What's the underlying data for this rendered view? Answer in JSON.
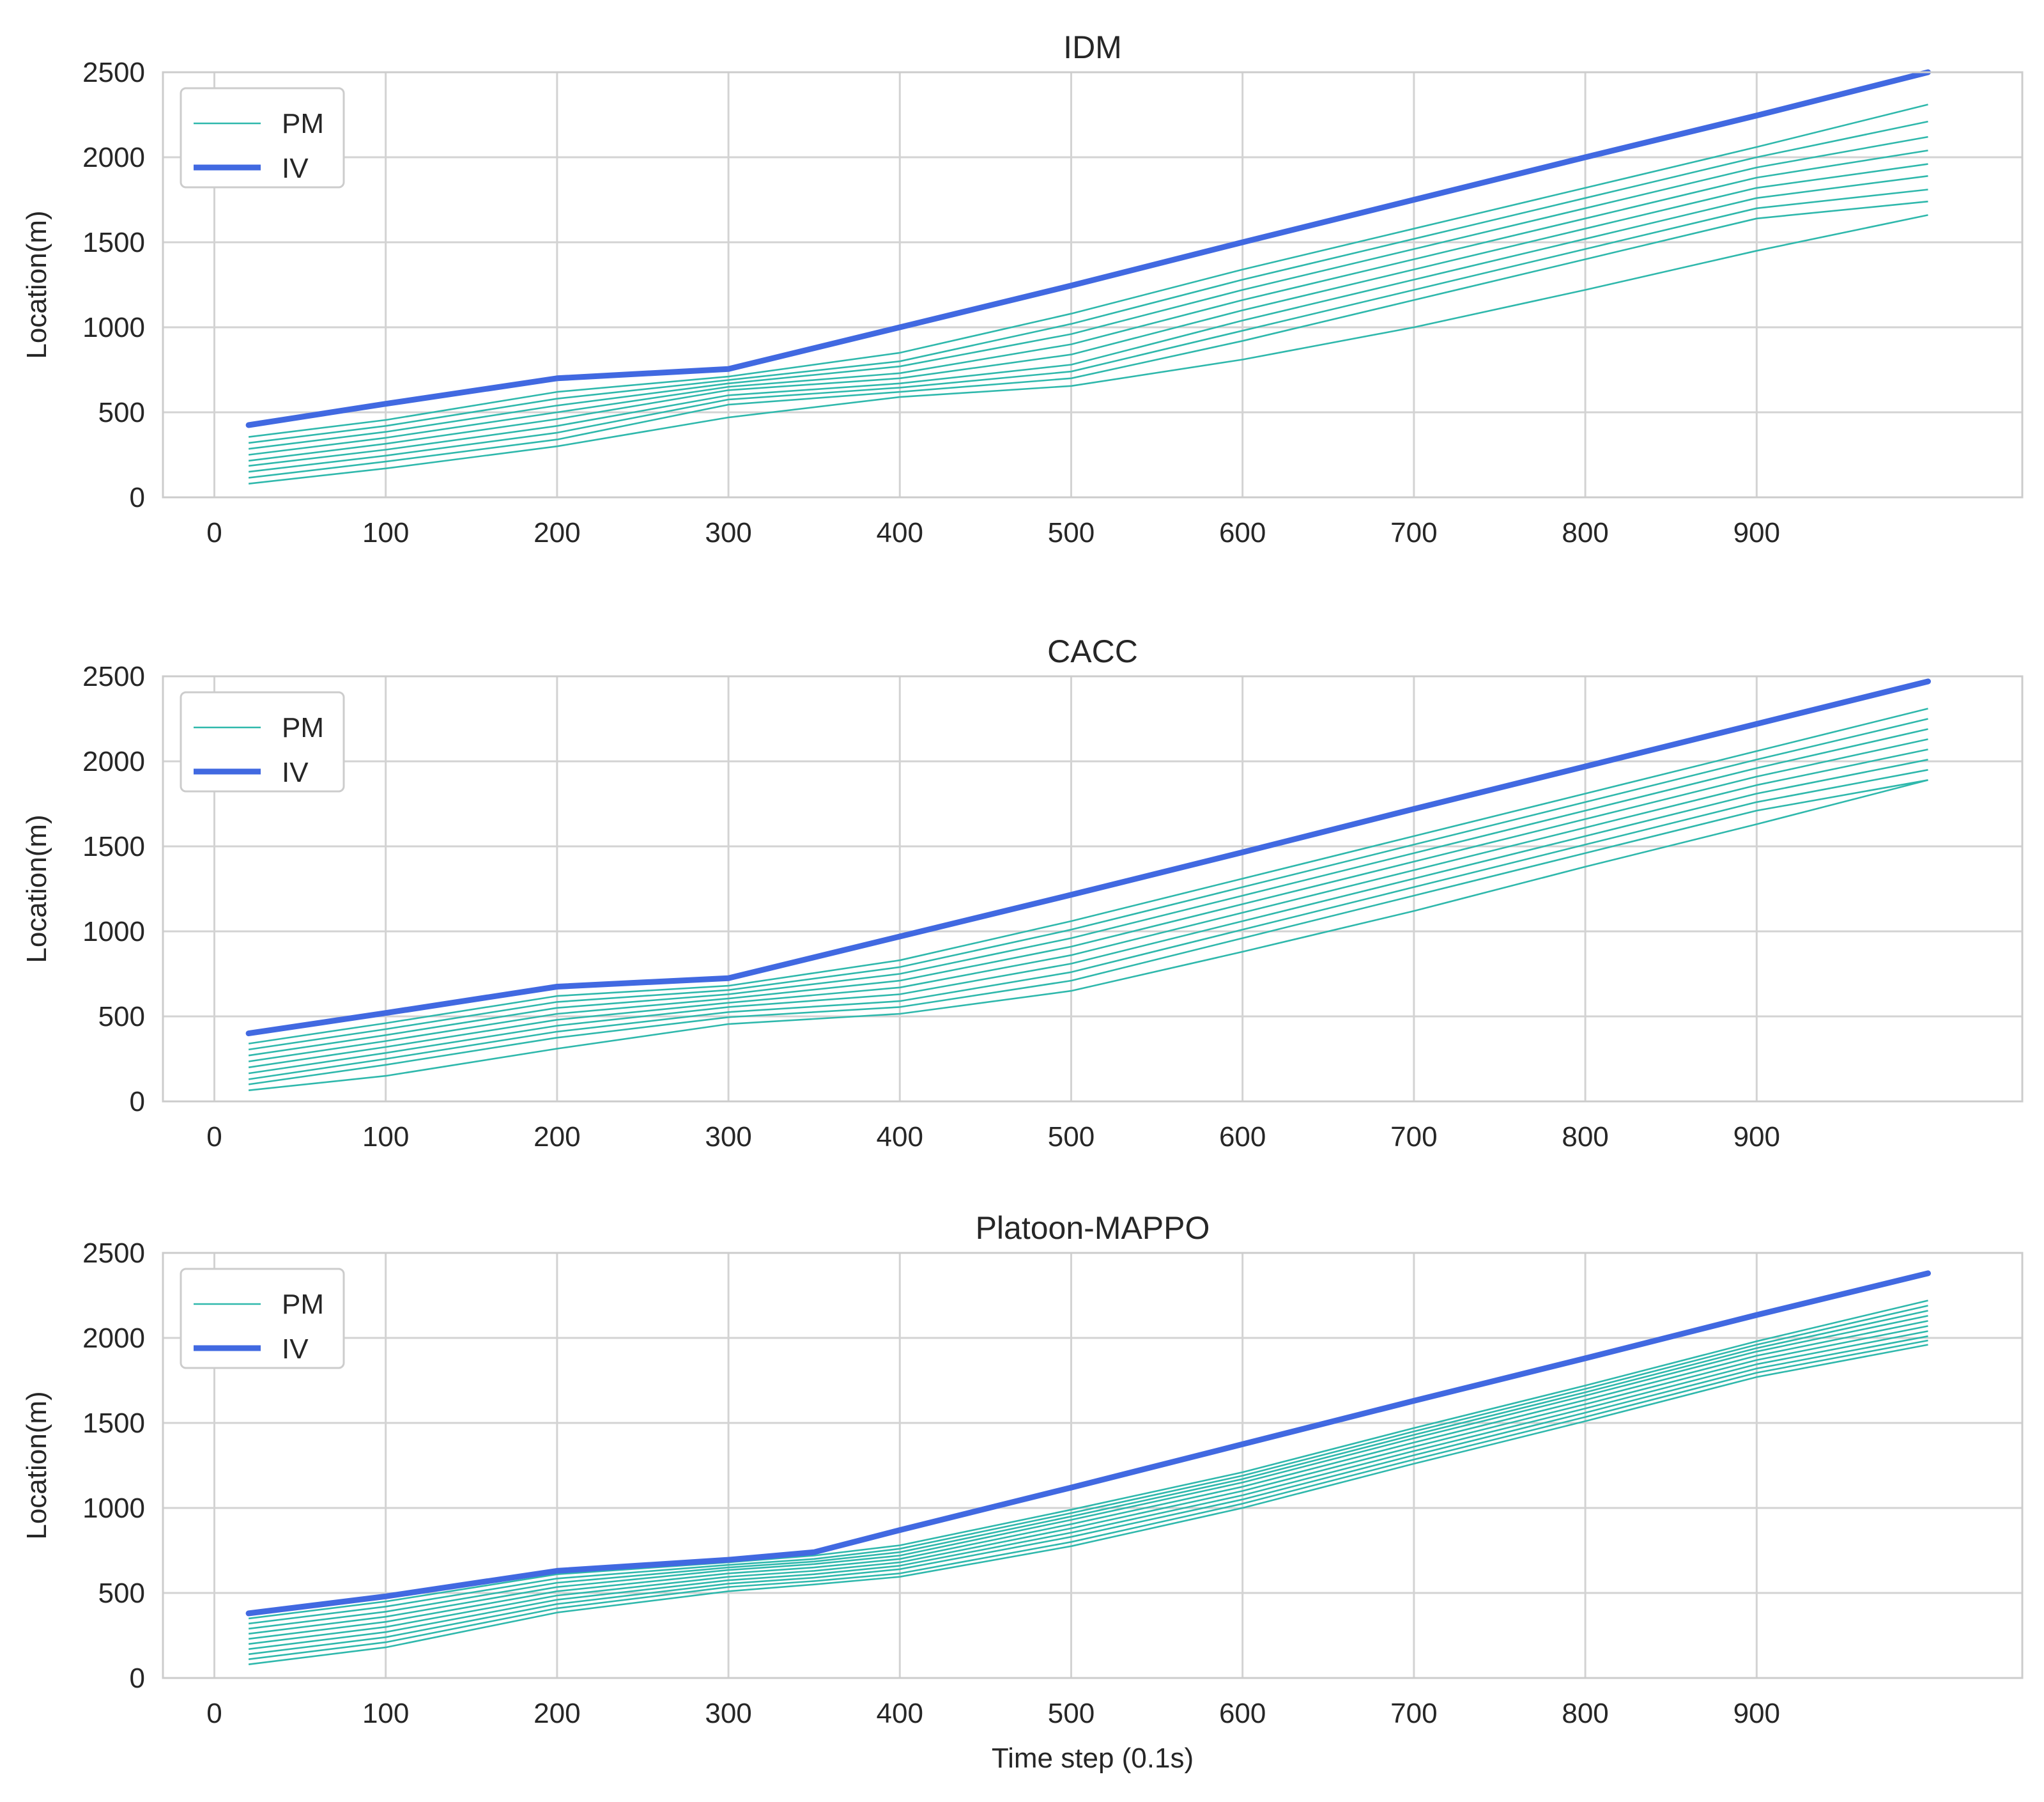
{
  "chart_data": [
    {
      "type": "line",
      "title": "IDM",
      "xlabel": "",
      "ylabel": "Location(m)",
      "xlim": [
        -30,
        1055
      ],
      "ylim": [
        0,
        2500
      ],
      "xticks": [
        0,
        100,
        200,
        300,
        400,
        500,
        600,
        700,
        800,
        900
      ],
      "yticks": [
        0,
        500,
        1000,
        1500,
        2000,
        2500
      ],
      "grid": true,
      "legend": {
        "position": "top-left",
        "entries": [
          "PM",
          "IV"
        ]
      },
      "iv": {
        "name": "IV",
        "x": [
          20,
          100,
          200,
          300,
          400,
          500,
          600,
          700,
          800,
          900,
          1000
        ],
        "y": [
          425,
          550,
          700,
          755,
          1000,
          1245,
          1500,
          1750,
          2000,
          2245,
          2500
        ]
      },
      "pm": {
        "name": "PM",
        "x": [
          20,
          100,
          200,
          300,
          400,
          500,
          600,
          700,
          800,
          900,
          1000
        ],
        "series": [
          [
            355,
            455,
            620,
            710,
            850,
            1080,
            1340,
            1580,
            1820,
            2060,
            2310
          ],
          [
            320,
            420,
            580,
            690,
            800,
            1020,
            1280,
            1520,
            1760,
            2000,
            2210
          ],
          [
            285,
            385,
            540,
            670,
            770,
            960,
            1220,
            1460,
            1700,
            1940,
            2120
          ],
          [
            250,
            350,
            500,
            650,
            730,
            900,
            1160,
            1400,
            1640,
            1880,
            2040
          ],
          [
            215,
            315,
            460,
            630,
            700,
            840,
            1100,
            1340,
            1580,
            1820,
            1960
          ],
          [
            185,
            280,
            420,
            600,
            670,
            780,
            1040,
            1280,
            1520,
            1760,
            1890
          ],
          [
            150,
            245,
            380,
            575,
            645,
            740,
            980,
            1220,
            1460,
            1700,
            1810
          ],
          [
            115,
            210,
            340,
            545,
            620,
            700,
            920,
            1160,
            1400,
            1640,
            1740
          ],
          [
            80,
            170,
            300,
            470,
            590,
            655,
            810,
            1000,
            1220,
            1450,
            1660
          ]
        ]
      }
    },
    {
      "type": "line",
      "title": "CACC",
      "xlabel": "",
      "ylabel": "Location(m)",
      "xlim": [
        -30,
        1055
      ],
      "ylim": [
        0,
        2500
      ],
      "xticks": [
        0,
        100,
        200,
        300,
        400,
        500,
        600,
        700,
        800,
        900
      ],
      "yticks": [
        0,
        500,
        1000,
        1500,
        2000,
        2500
      ],
      "grid": true,
      "legend": {
        "position": "top-left",
        "entries": [
          "PM",
          "IV"
        ]
      },
      "iv": {
        "name": "IV",
        "x": [
          20,
          100,
          200,
          300,
          400,
          500,
          600,
          700,
          800,
          900,
          1000
        ],
        "y": [
          400,
          520,
          675,
          725,
          970,
          1215,
          1465,
          1720,
          1970,
          2220,
          2470
        ]
      },
      "pm": {
        "name": "PM",
        "x": [
          20,
          100,
          200,
          300,
          400,
          500,
          600,
          700,
          800,
          900,
          1000
        ],
        "series": [
          [
            340,
            460,
            620,
            680,
            830,
            1060,
            1310,
            1560,
            1810,
            2060,
            2310
          ],
          [
            305,
            425,
            585,
            655,
            790,
            1010,
            1260,
            1510,
            1760,
            2010,
            2250
          ],
          [
            270,
            390,
            550,
            630,
            750,
            960,
            1210,
            1460,
            1710,
            1960,
            2190
          ],
          [
            235,
            355,
            515,
            605,
            710,
            910,
            1160,
            1410,
            1660,
            1910,
            2130
          ],
          [
            200,
            320,
            480,
            580,
            670,
            860,
            1110,
            1360,
            1610,
            1860,
            2070
          ],
          [
            165,
            285,
            445,
            555,
            630,
            810,
            1060,
            1310,
            1560,
            1810,
            2010
          ],
          [
            130,
            250,
            410,
            525,
            590,
            760,
            1010,
            1260,
            1510,
            1760,
            1950
          ],
          [
            100,
            215,
            375,
            495,
            555,
            710,
            960,
            1210,
            1460,
            1710,
            1890
          ],
          [
            65,
            150,
            310,
            455,
            515,
            650,
            880,
            1120,
            1380,
            1630,
            1890
          ]
        ]
      }
    },
    {
      "type": "line",
      "title": "Platoon-MAPPO",
      "xlabel": "Time step (0.1s)",
      "ylabel": "Location(m)",
      "xlim": [
        -30,
        1055
      ],
      "ylim": [
        0,
        2500
      ],
      "xticks": [
        0,
        100,
        200,
        300,
        400,
        500,
        600,
        700,
        800,
        900
      ],
      "yticks": [
        0,
        500,
        1000,
        1500,
        2000,
        2500
      ],
      "grid": true,
      "legend": {
        "position": "top-left",
        "entries": [
          "PM",
          "IV"
        ]
      },
      "iv": {
        "name": "IV",
        "x": [
          20,
          100,
          200,
          300,
          350,
          400,
          500,
          600,
          700,
          800,
          900,
          1000
        ],
        "y": [
          380,
          480,
          630,
          695,
          740,
          870,
          1120,
          1375,
          1630,
          1880,
          2135,
          2380
        ]
      },
      "pm": {
        "name": "PM",
        "x": [
          20,
          100,
          200,
          300,
          350,
          400,
          500,
          600,
          700,
          800,
          900,
          1000
        ],
        "series": [
          [
            350,
            450,
            610,
            680,
            720,
            780,
            990,
            1210,
            1470,
            1720,
            1980,
            2220
          ],
          [
            320,
            420,
            585,
            665,
            700,
            760,
            970,
            1190,
            1450,
            1700,
            1960,
            2190
          ],
          [
            290,
            390,
            560,
            650,
            685,
            740,
            950,
            1170,
            1430,
            1680,
            1940,
            2160
          ],
          [
            260,
            360,
            535,
            635,
            670,
            720,
            930,
            1150,
            1410,
            1660,
            1920,
            2130
          ],
          [
            230,
            330,
            510,
            615,
            650,
            700,
            905,
            1125,
            1385,
            1635,
            1895,
            2100
          ],
          [
            200,
            300,
            485,
            595,
            630,
            680,
            880,
            1100,
            1360,
            1610,
            1870,
            2070
          ],
          [
            170,
            270,
            460,
            575,
            610,
            660,
            855,
            1075,
            1335,
            1585,
            1845,
            2040
          ],
          [
            140,
            240,
            435,
            555,
            590,
            640,
            830,
            1050,
            1310,
            1560,
            1820,
            2010
          ],
          [
            110,
            210,
            410,
            535,
            570,
            615,
            800,
            1025,
            1285,
            1535,
            1795,
            1985
          ],
          [
            80,
            180,
            385,
            510,
            550,
            595,
            775,
            1000,
            1260,
            1510,
            1770,
            1960
          ]
        ]
      }
    }
  ],
  "colors": {
    "pm": "#2fb8ac",
    "iv": "#4169e1",
    "grid": "#d3d3d3",
    "frame": "#cccccc",
    "text": "#262626"
  }
}
